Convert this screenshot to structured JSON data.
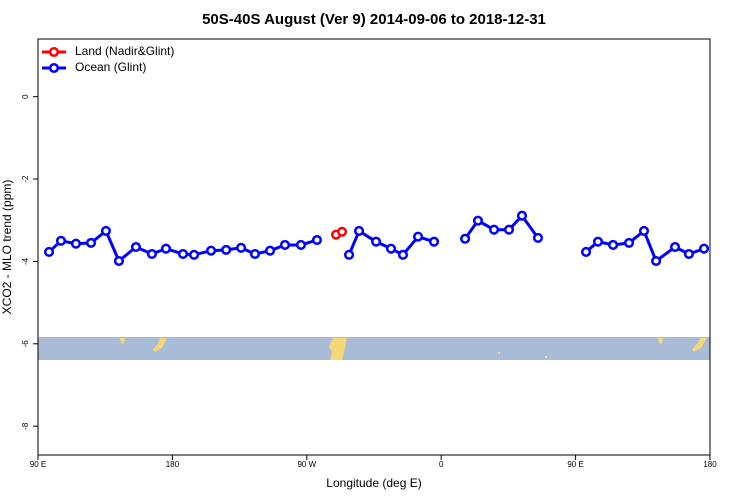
{
  "chart_data": {
    "type": "line",
    "title": "50S-40S August (Ver 9)   2014-09-06 to 2018-12-31",
    "x_label": "Longitude (deg E)",
    "y_label": "XCO2 - MLO trend (ppm)",
    "xlim": [
      90,
      540
    ],
    "ylim": [
      -8.7,
      1.4
    ],
    "xticks": [
      {
        "value": 90,
        "label": "90 E"
      },
      180,
      {
        "value": 270,
        "label": "90 W"
      },
      {
        "value": 360,
        "label": "0"
      },
      {
        "value": 450,
        "label": "90 E"
      },
      {
        "value": 540,
        "label": "180"
      }
    ],
    "yticks": [
      0,
      -2,
      -4,
      -6,
      -8
    ],
    "legend": "top-left",
    "series": [
      {
        "name": "Land (Nadir&Glint)",
        "color": "#ff0000",
        "x": [
          289.6,
          293.6
        ],
        "values": [
          -3.35,
          -3.28
        ]
      },
      {
        "name": "Ocean (Glint)",
        "color": "#0000ff",
        "x": [
          97.4,
          105.4,
          115.4,
          125.5,
          135.5,
          144.2,
          155.6,
          166.3,
          175.7,
          187.1,
          194.5,
          205.9,
          216.0,
          226.0,
          235.3,
          245.4,
          255.4,
          266.1,
          276.8,
          null,
          298.3,
          305.0,
          316.4,
          326.4,
          334.4,
          344.5,
          355.2,
          null,
          376.0,
          384.6,
          395.4,
          405.4,
          414.1,
          424.8,
          null,
          457.0,
          465.0,
          475.1,
          485.8,
          495.8,
          503.9,
          516.6,
          525.9,
          536.0
        ],
        "values": [
          -3.77,
          -3.5,
          -3.57,
          -3.55,
          -3.26,
          -3.99,
          -3.65,
          -3.82,
          -3.69,
          -3.82,
          -3.84,
          -3.74,
          -3.72,
          -3.67,
          -3.82,
          -3.74,
          -3.6,
          -3.6,
          -3.48,
          null,
          -3.84,
          -3.26,
          -3.52,
          -3.69,
          -3.84,
          -3.4,
          -3.52,
          null,
          -3.45,
          -3.01,
          -3.23,
          -3.23,
          -2.89,
          -3.43,
          null,
          -3.77,
          -3.52,
          -3.6,
          -3.55,
          -3.26,
          -3.99,
          -3.65,
          -3.82,
          -3.69
        ]
      }
    ]
  }
}
